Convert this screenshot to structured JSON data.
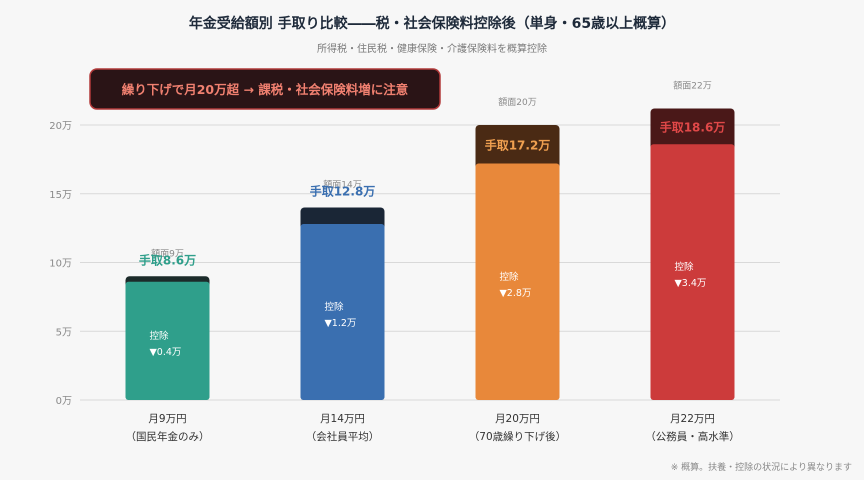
{
  "chart_data": {
    "type": "bar",
    "title": "年金受給額別 手取り比較――税・社会保険料控除後（単身・65歳以上概算）",
    "subtitle": "所得税・住民税・健康保険・介護保険料を概算控除",
    "callout": "繰り下げで月20万超 → 課税・社会保険料増に注意",
    "footnote": "※ 概算。扶養・控除の状況により異なります",
    "ylim": [
      0,
      20
    ],
    "yticks": [
      0,
      5,
      10,
      15,
      20
    ],
    "ytick_labels": [
      "0万",
      "5万",
      "10万",
      "15万",
      "20万"
    ],
    "grid": true,
    "bars": [
      {
        "label_line1": "月9万円",
        "label_line2": "（国民年金のみ）",
        "gross": 9,
        "net": 8.6,
        "deduction": 0.4,
        "gross_label": "額面9万",
        "net_label": "手取8.6万",
        "deduction_title": "控除",
        "deduction_label": "▼0.4万",
        "color": "#2f9f8b",
        "cap_color": "#1c2b2a",
        "net_label_color": "#2f9f8b",
        "net_label_inside": false
      },
      {
        "label_line1": "月14万円",
        "label_line2": "（会社員平均）",
        "gross": 14,
        "net": 12.8,
        "deduction": 1.2,
        "gross_label": "額面14万",
        "net_label": "手取12.8万",
        "deduction_title": "控除",
        "deduction_label": "▼1.2万",
        "color": "#3a6fb0",
        "cap_color": "#1a2636",
        "net_label_color": "#3a6fb0",
        "net_label_inside": false
      },
      {
        "label_line1": "月20万円",
        "label_line2": "（70歳繰り下げ後）",
        "gross": 20,
        "net": 17.2,
        "deduction": 2.8,
        "gross_label": "額面20万",
        "net_label": "手取17.2万",
        "deduction_title": "控除",
        "deduction_label": "▼2.8万",
        "color": "#e8883a",
        "cap_color": "#4a2a14",
        "net_label_color": "#f0a050",
        "net_label_inside": true
      },
      {
        "label_line1": "月22万円",
        "label_line2": "（公務員・高水準）",
        "gross": 22,
        "net": 18.6,
        "deduction": 3.4,
        "gross_label": "額面22万",
        "net_label": "手取18.6万",
        "deduction_title": "控除",
        "deduction_label": "▼3.4万",
        "color": "#cc3b3b",
        "cap_color": "#4a1818",
        "net_label_color": "#e04848",
        "net_label_inside": true
      }
    ]
  }
}
